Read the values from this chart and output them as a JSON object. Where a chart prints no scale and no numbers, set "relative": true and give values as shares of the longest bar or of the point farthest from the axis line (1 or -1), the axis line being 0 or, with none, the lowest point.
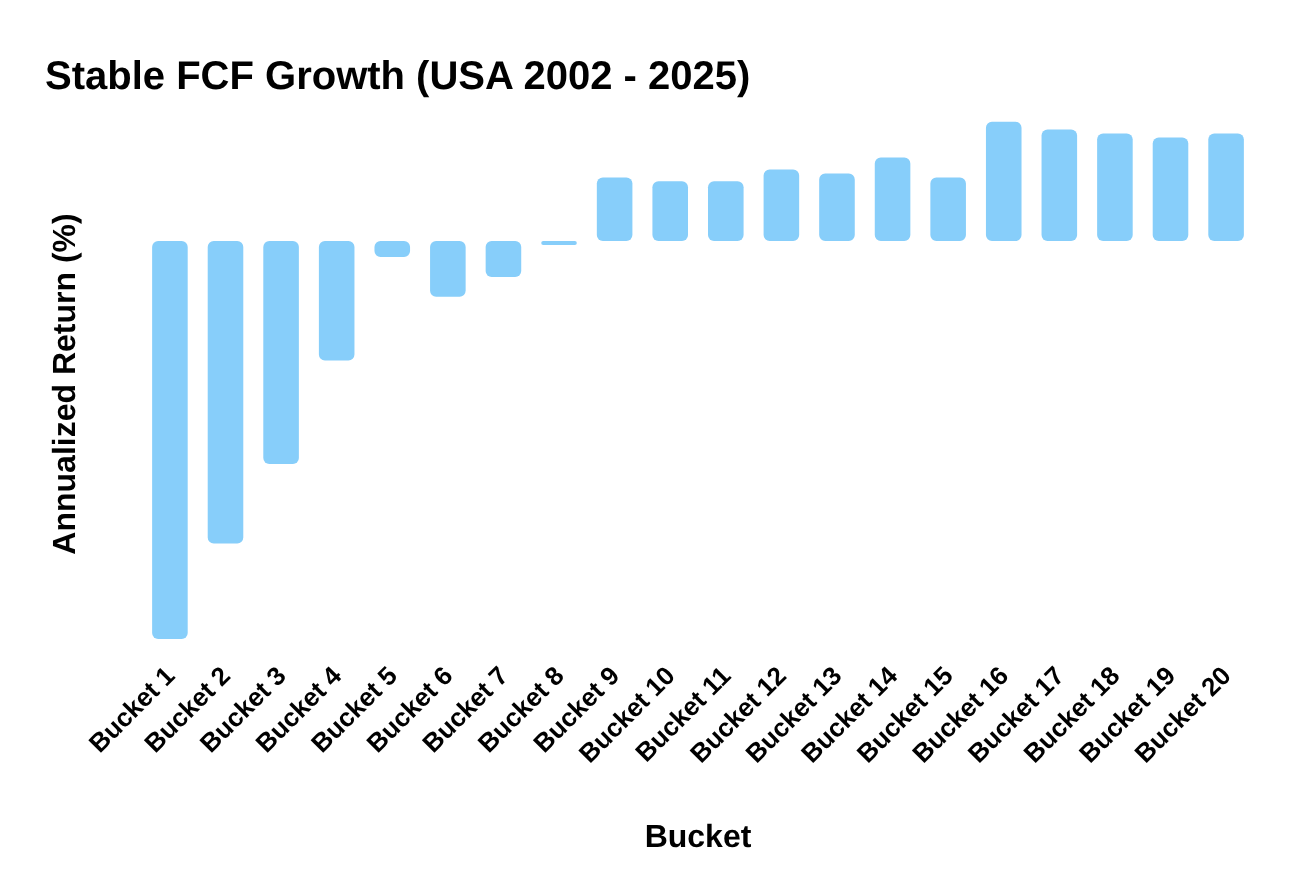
{
  "chart_data": {
    "type": "bar",
    "title": "Stable FCF Growth (USA 2002 - 2025)",
    "xlabel": "Bucket",
    "ylabel": "Annualized Return (%)",
    "relative": true,
    "color": "#87cefa",
    "categories": [
      "Bucket 1",
      "Bucket 2",
      "Bucket 3",
      "Bucket 4",
      "Bucket 5",
      "Bucket 6",
      "Bucket 7",
      "Bucket 8",
      "Bucket 9",
      "Bucket 10",
      "Bucket 11",
      "Bucket 12",
      "Bucket 13",
      "Bucket 14",
      "Bucket 15",
      "Bucket 16",
      "Bucket 17",
      "Bucket 18",
      "Bucket 19",
      "Bucket 20"
    ],
    "values": [
      -1,
      -0.76,
      -0.56,
      -0.3,
      -0.04,
      -0.14,
      -0.09,
      -0.01,
      0.16,
      0.15,
      0.15,
      0.18,
      0.17,
      0.21,
      0.16,
      0.3,
      0.28,
      0.27,
      0.26,
      0.27
    ]
  }
}
